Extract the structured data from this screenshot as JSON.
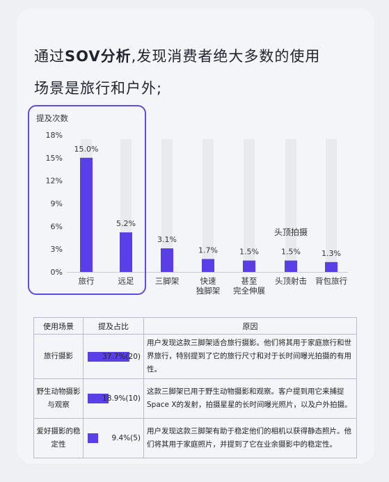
{
  "headline": {
    "line1_prefix": "通过",
    "line1_highlight": "SOV分析",
    "line1_suffix": ",发现消费者绝大多数的使用",
    "line2": "场景是旅行和户外;"
  },
  "chart_data": {
    "type": "bar",
    "ylabel": "提及次数",
    "ylim": [
      0,
      18
    ],
    "yticks": [
      "0%",
      "3%",
      "6%",
      "9%",
      "12%",
      "15%",
      "18%"
    ],
    "categories": [
      "旅行",
      "远足",
      "三脚架",
      "快速\n独脚架",
      "甚至\n完全伸展",
      "头顶射击",
      "背包旅行"
    ],
    "values": [
      15.0,
      5.2,
      3.1,
      1.7,
      1.5,
      1.5,
      1.3
    ],
    "value_labels": [
      "15.0%",
      "5.2%",
      "3.1%",
      "1.7%",
      "1.5%",
      "1.5%",
      "1.3%"
    ],
    "annotation": "头顶拍摄",
    "colors": {
      "bar": "#5b3fe6",
      "track": "#e9eaee",
      "highlight": "#5b4be8"
    }
  },
  "table": {
    "headers": [
      "使用场景",
      "提及占比",
      "原因"
    ],
    "rows": [
      {
        "scene": "旅行摄影",
        "share_label": "37.7%(20)",
        "share": 0.377,
        "reason": "用户发现这款三脚架适合旅行摄影。他们将其用于家庭旅行和世界旅行，特别提到了它的旅行尺寸和对于长时间曝光拍摄的有用性。"
      },
      {
        "scene": "野生动物摄影与观察",
        "share_label": "18.9%(10)",
        "share": 0.189,
        "reason": "这款三脚架已用于野生动物摄影和观察。客户提到用它来捕捉Space X的发射，拍摄星星的长时间曝光照片，以及户外拍摄。"
      },
      {
        "scene": "爱好摄影的稳定性",
        "share_label": "9.4%(5)",
        "share": 0.094,
        "reason": "用户发现这款三脚架有助于稳定他们的相机以获得静态照片。他们将其用于家庭照片，并提到了它在业余摄影中的稳定性。"
      }
    ]
  }
}
